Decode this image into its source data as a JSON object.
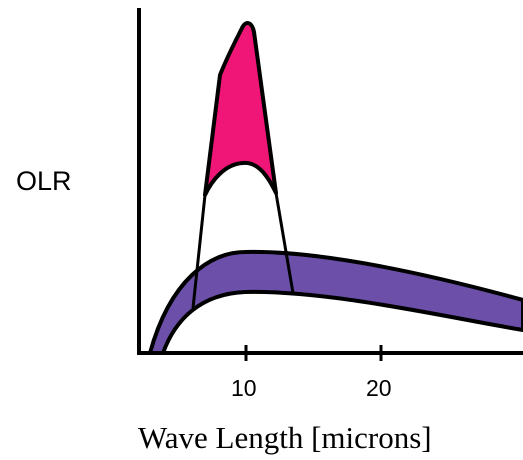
{
  "diagram": {
    "y_axis_label": "OLR",
    "x_axis_label": "Wave Length [microns]",
    "x_ticks": [
      "10",
      "20"
    ],
    "colors": {
      "window_peak_fill": "#ef1677",
      "broad_band_fill": "#6b4fa8",
      "outline": "#000000",
      "background": "#ffffff"
    }
  }
}
